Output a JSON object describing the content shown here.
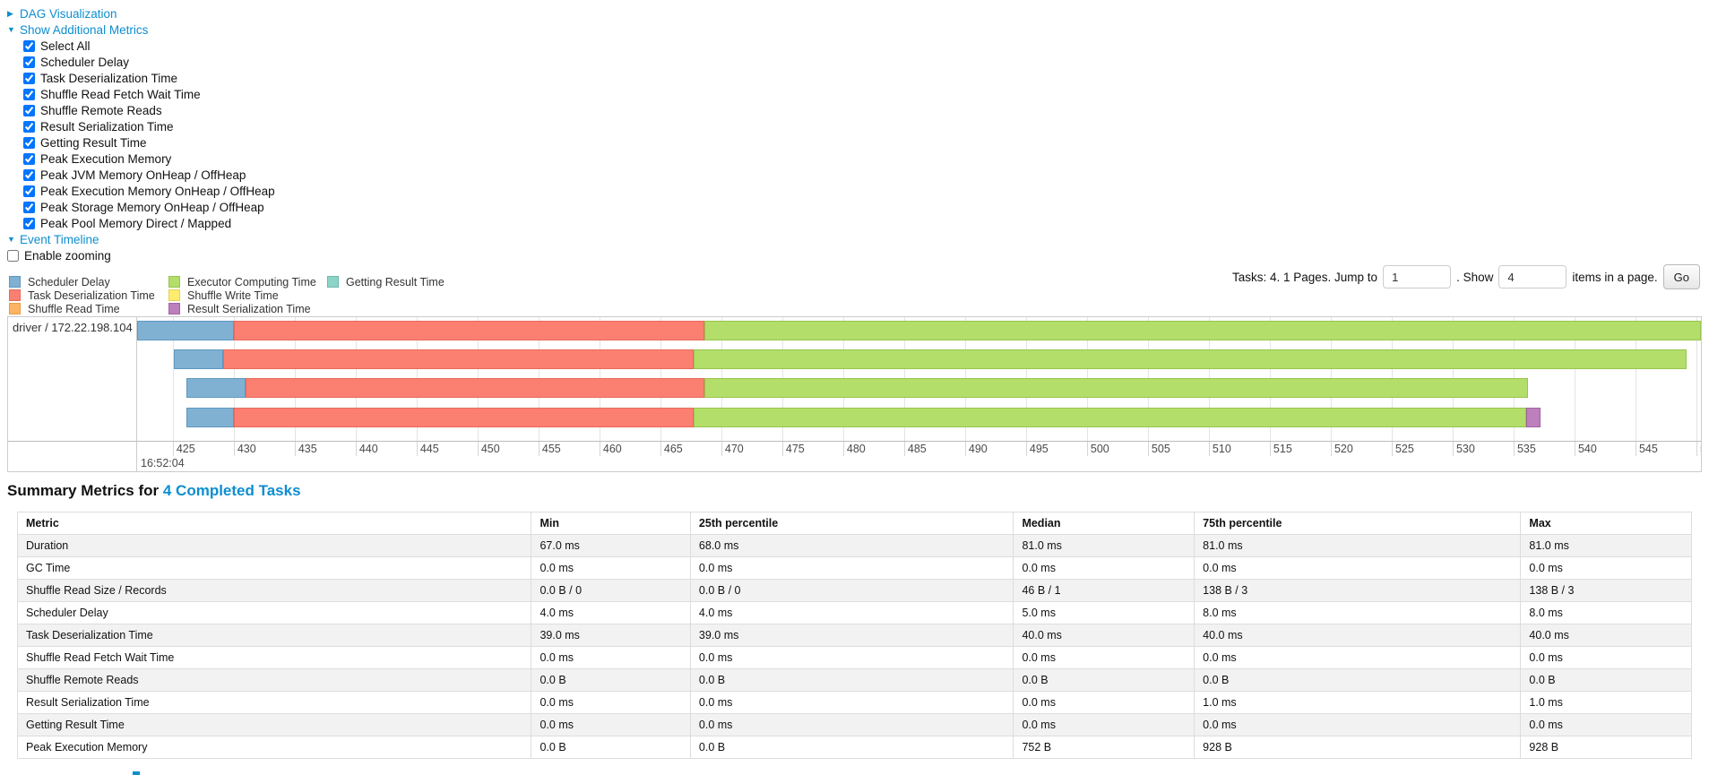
{
  "colors": {
    "link": "#0d8ecf",
    "keys": {
      "scheduler_delay": {
        "fill": "#80B1D3",
        "border": "#5f97bf",
        "label": "Scheduler Delay"
      },
      "deserialization": {
        "fill": "#FB8072",
        "border": "#e76a5c",
        "label": "Task Deserialization Time"
      },
      "shuffle_read": {
        "fill": "#FDB462",
        "border": "#e99c48",
        "label": "Shuffle Read Time"
      },
      "executor_computing": {
        "fill": "#B3DE69",
        "border": "#97c44d",
        "label": "Executor Computing Time"
      },
      "shuffle_write": {
        "fill": "#FFED6F",
        "border": "#e3d055",
        "label": "Shuffle Write Time"
      },
      "result_serialization": {
        "fill": "#BC80BD",
        "border": "#a263a3",
        "label": "Result Serialization Time"
      },
      "getting_result": {
        "fill": "#8DD3C7",
        "border": "#6fb8ab",
        "label": "Getting Result Time"
      }
    }
  },
  "sections": {
    "dag": {
      "label": "DAG Visualization",
      "expanded": false
    },
    "metrics": {
      "label": "Show Additional Metrics",
      "expanded": true,
      "items": [
        {
          "label": "Select All",
          "checked": true
        },
        {
          "label": "Scheduler Delay",
          "checked": true
        },
        {
          "label": "Task Deserialization Time",
          "checked": true
        },
        {
          "label": "Shuffle Read Fetch Wait Time",
          "checked": true
        },
        {
          "label": "Shuffle Remote Reads",
          "checked": true
        },
        {
          "label": "Result Serialization Time",
          "checked": true
        },
        {
          "label": "Getting Result Time",
          "checked": true
        },
        {
          "label": "Peak Execution Memory",
          "checked": true
        },
        {
          "label": "Peak JVM Memory OnHeap / OffHeap",
          "checked": true
        },
        {
          "label": "Peak Execution Memory OnHeap / OffHeap",
          "checked": true
        },
        {
          "label": "Peak Storage Memory OnHeap / OffHeap",
          "checked": true
        },
        {
          "label": "Peak Pool Memory Direct / Mapped",
          "checked": true
        }
      ]
    },
    "event_timeline": {
      "label": "Event Timeline",
      "expanded": true
    },
    "enable_zooming": {
      "label": "Enable zooming",
      "checked": false
    }
  },
  "legend": {
    "columns": [
      [
        "scheduler_delay",
        "deserialization",
        "shuffle_read"
      ],
      [
        "executor_computing",
        "shuffle_write",
        "result_serialization"
      ],
      [
        "getting_result"
      ]
    ]
  },
  "pagination": {
    "tasks_text": "Tasks: 4. 1 Pages. Jump to",
    "jump_value": "1",
    "show_text": ". Show",
    "show_value": "4",
    "items_text": "items in a page.",
    "go_label": "Go"
  },
  "timeline": {
    "group_label": "driver / 172.22.198.104",
    "axis": {
      "unit": "ms within second 16:52:04",
      "min": 422.07,
      "max": 550.37,
      "tick_start": 425,
      "tick_end": 550,
      "tick_step": 5,
      "major_label": "16:52:04"
    },
    "tasks": [
      {
        "segments": [
          {
            "key": "scheduler_delay",
            "start": 422.07,
            "end": 430.0
          },
          {
            "key": "deserialization",
            "start": 430.0,
            "end": 468.6
          },
          {
            "key": "executor_computing",
            "start": 468.6,
            "end": 550.4
          }
        ]
      },
      {
        "segments": [
          {
            "key": "scheduler_delay",
            "start": 425.1,
            "end": 429.1
          },
          {
            "key": "deserialization",
            "start": 429.1,
            "end": 467.7
          },
          {
            "key": "executor_computing",
            "start": 467.7,
            "end": 549.2
          }
        ]
      },
      {
        "segments": [
          {
            "key": "scheduler_delay",
            "start": 426.1,
            "end": 431.0
          },
          {
            "key": "deserialization",
            "start": 431.0,
            "end": 468.6
          },
          {
            "key": "executor_computing",
            "start": 468.6,
            "end": 536.2
          }
        ]
      },
      {
        "segments": [
          {
            "key": "scheduler_delay",
            "start": 426.1,
            "end": 430.0
          },
          {
            "key": "deserialization",
            "start": 430.0,
            "end": 467.7
          },
          {
            "key": "executor_computing",
            "start": 467.7,
            "end": 536.0
          },
          {
            "key": "result_serialization",
            "start": 536.0,
            "end": 537.2
          }
        ]
      }
    ]
  },
  "summary": {
    "title_prefix": "Summary Metrics for",
    "title_link": "4 Completed Tasks",
    "table": {
      "headers": [
        "Metric",
        "Min",
        "25th percentile",
        "Median",
        "75th percentile",
        "Max"
      ],
      "rows": [
        [
          "Duration",
          "67.0 ms",
          "68.0 ms",
          "81.0 ms",
          "81.0 ms",
          "81.0 ms"
        ],
        [
          "GC Time",
          "0.0 ms",
          "0.0 ms",
          "0.0 ms",
          "0.0 ms",
          "0.0 ms"
        ],
        [
          "Shuffle Read Size / Records",
          "0.0 B / 0",
          "0.0 B / 0",
          "46 B / 1",
          "138 B / 3",
          "138 B / 3"
        ],
        [
          "Scheduler Delay",
          "4.0 ms",
          "4.0 ms",
          "5.0 ms",
          "8.0 ms",
          "8.0 ms"
        ],
        [
          "Task Deserialization Time",
          "39.0 ms",
          "39.0 ms",
          "40.0 ms",
          "40.0 ms",
          "40.0 ms"
        ],
        [
          "Shuffle Read Fetch Wait Time",
          "0.0 ms",
          "0.0 ms",
          "0.0 ms",
          "0.0 ms",
          "0.0 ms"
        ],
        [
          "Shuffle Remote Reads",
          "0.0 B",
          "0.0 B",
          "0.0 B",
          "0.0 B",
          "0.0 B"
        ],
        [
          "Result Serialization Time",
          "0.0 ms",
          "0.0 ms",
          "0.0 ms",
          "1.0 ms",
          "1.0 ms"
        ],
        [
          "Getting Result Time",
          "0.0 ms",
          "0.0 ms",
          "0.0 ms",
          "0.0 ms",
          "0.0 ms"
        ],
        [
          "Peak Execution Memory",
          "0.0 B",
          "0.0 B",
          "752 B",
          "928 B",
          "928 B"
        ]
      ]
    }
  }
}
